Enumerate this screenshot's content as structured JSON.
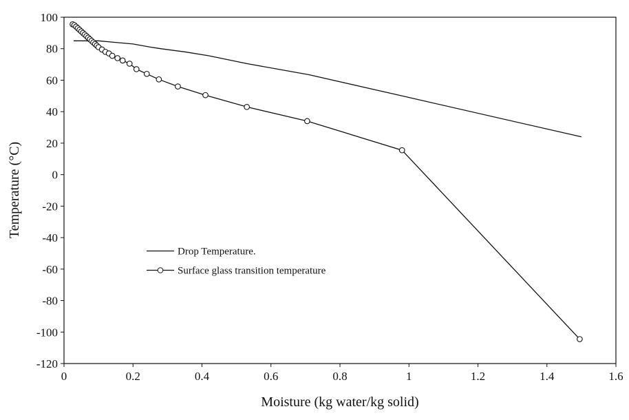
{
  "chart_data": {
    "type": "line",
    "xlabel": "Moisture (kg water/kg solid)",
    "ylabel": "Temperature (°C)",
    "xlim": [
      0,
      1.6
    ],
    "xticks": [
      0,
      0.2,
      0.4,
      0.6,
      0.8,
      1,
      1.2,
      1.4,
      1.6
    ],
    "ylim": [
      -120,
      100
    ],
    "yticks": [
      -120,
      -100,
      -80,
      -60,
      -40,
      -20,
      0,
      20,
      40,
      60,
      80,
      100
    ],
    "legend": "center left",
    "series": [
      {
        "name": "Drop Temperature.",
        "color": "#111111",
        "marker": "none",
        "x": [
          0.028,
          0.1,
          0.15,
          0.2,
          0.25,
          0.28,
          0.35,
          0.42,
          0.53,
          0.71,
          0.98,
          1.5
        ],
        "values": [
          85,
          85,
          84,
          83,
          81,
          80,
          78,
          75.5,
          70.5,
          63.5,
          50,
          24
        ]
      },
      {
        "name": "Surface glass transition temperature",
        "color": "#111111",
        "marker": "circle",
        "x": [
          0.025,
          0.03,
          0.035,
          0.04,
          0.045,
          0.05,
          0.055,
          0.06,
          0.065,
          0.07,
          0.075,
          0.08,
          0.085,
          0.09,
          0.095,
          0.1,
          0.11,
          0.12,
          0.13,
          0.14,
          0.155,
          0.17,
          0.19,
          0.21,
          0.24,
          0.275,
          0.33,
          0.41,
          0.53,
          0.705,
          0.98,
          1.495
        ],
        "values": [
          95.5,
          95,
          94,
          93,
          92,
          91,
          90,
          89,
          88,
          87,
          86,
          85,
          84,
          83,
          82,
          81,
          79.5,
          78,
          77,
          75.5,
          74,
          72.5,
          70.5,
          67,
          64,
          60.5,
          56,
          50.5,
          43,
          34,
          15.5,
          -104.5
        ]
      }
    ]
  }
}
